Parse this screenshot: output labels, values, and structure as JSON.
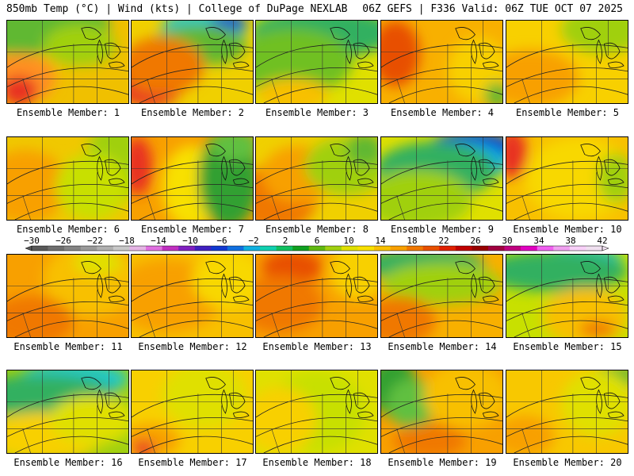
{
  "header": {
    "left": "850mb Temp (°C) | Wind (kts) | College of DuPage NEXLAB",
    "right": "06Z GEFS | F336 Valid: 06Z TUE OCT 07 2025"
  },
  "colorbar": {
    "ticks": [
      "-30",
      "-26",
      "-22",
      "-18",
      "-14",
      "-10",
      "-6",
      "-2",
      "2",
      "6",
      "10",
      "14",
      "18",
      "22",
      "26",
      "30",
      "34",
      "38",
      "42"
    ],
    "colors": [
      "#585858",
      "#6e6e6e",
      "#848484",
      "#9a9a9a",
      "#b0b0b0",
      "#c8c8c8",
      "#e4b4e4",
      "#e070e0",
      "#c030c0",
      "#8020c0",
      "#4020c0",
      "#1038d0",
      "#1070e0",
      "#10b0e0",
      "#10d0b0",
      "#10c060",
      "#10a020",
      "#60b810",
      "#a0d010",
      "#e0e000",
      "#f8e000",
      "#f8c000",
      "#f8a000",
      "#f07800",
      "#e85000",
      "#e02000",
      "#c00000",
      "#980000",
      "#a00040",
      "#c00080",
      "#e000c0",
      "#f060f0",
      "#f0a0f0",
      "#f8d0f8",
      "#f0e0f0"
    ]
  },
  "panels": [
    {
      "label": "Ensemble Member: 1",
      "base": "#f0c000",
      "blobs": [
        [
          "#60b830",
          0.15,
          0.05,
          0.7,
          0.35
        ],
        [
          "#ff9020",
          0.1,
          0.7,
          0.3,
          0.3
        ],
        [
          "#e83020",
          0.1,
          0.85,
          0.15,
          0.18
        ],
        [
          "#a0d010",
          0.6,
          0.3,
          0.3,
          0.25
        ]
      ]
    },
    {
      "label": "Ensemble Member: 2",
      "base": "#f0d000",
      "blobs": [
        [
          "#20c8c8",
          0.6,
          0.08,
          0.35,
          0.2
        ],
        [
          "#1060d0",
          0.8,
          0.03,
          0.15,
          0.12
        ],
        [
          "#60b830",
          0.55,
          0.3,
          0.4,
          0.25
        ],
        [
          "#e83020",
          0.15,
          0.7,
          0.3,
          0.35
        ],
        [
          "#f07800",
          0.25,
          0.55,
          0.35,
          0.35
        ]
      ]
    },
    {
      "label": "Ensemble Member: 3",
      "base": "#e0e000",
      "blobs": [
        [
          "#30b060",
          0.55,
          0.15,
          0.6,
          0.3
        ],
        [
          "#70c020",
          0.3,
          0.5,
          0.5,
          0.4
        ],
        [
          "#f8c000",
          0.3,
          0.9,
          0.3,
          0.2
        ]
      ]
    },
    {
      "label": "Ensemble Member: 4",
      "base": "#f8b000",
      "blobs": [
        [
          "#e85000",
          0.12,
          0.4,
          0.2,
          0.4
        ],
        [
          "#f8d000",
          0.8,
          0.6,
          0.25,
          0.4
        ],
        [
          "#60b830",
          0.95,
          0.9,
          0.1,
          0.15
        ]
      ]
    },
    {
      "label": "Ensemble Member: 5",
      "base": "#f8d000",
      "blobs": [
        [
          "#a0d010",
          0.8,
          0.1,
          0.35,
          0.3
        ],
        [
          "#f8a000",
          0.2,
          0.7,
          0.4,
          0.35
        ]
      ]
    },
    {
      "label": "Ensemble Member: 6",
      "base": "#f0c800",
      "blobs": [
        [
          "#f8a000",
          0.15,
          0.6,
          0.35,
          0.45
        ],
        [
          "#a0d010",
          0.9,
          0.3,
          0.25,
          0.5
        ],
        [
          "#c8e000",
          0.7,
          0.6,
          0.3,
          0.4
        ]
      ]
    },
    {
      "label": "Ensemble Member: 7",
      "base": "#f8a000",
      "blobs": [
        [
          "#e83020",
          0.05,
          0.35,
          0.12,
          0.35
        ],
        [
          "#f8e000",
          0.5,
          0.6,
          0.25,
          0.5
        ],
        [
          "#30a030",
          0.8,
          0.5,
          0.25,
          0.6
        ],
        [
          "#60c040",
          0.85,
          0.1,
          0.2,
          0.2
        ]
      ]
    },
    {
      "label": "Ensemble Member: 8",
      "base": "#f0d000",
      "blobs": [
        [
          "#f07800",
          0.15,
          0.75,
          0.35,
          0.4
        ],
        [
          "#f8a000",
          0.35,
          0.45,
          0.3,
          0.35
        ],
        [
          "#a0d010",
          0.75,
          0.35,
          0.35,
          0.35
        ],
        [
          "#60b830",
          0.9,
          0.15,
          0.15,
          0.2
        ]
      ]
    },
    {
      "label": "Ensemble Member: 9",
      "base": "#e0e000",
      "blobs": [
        [
          "#1038d0",
          0.75,
          0.12,
          0.35,
          0.2
        ],
        [
          "#10b0e0",
          0.65,
          0.3,
          0.4,
          0.25
        ],
        [
          "#30b060",
          0.45,
          0.4,
          0.5,
          0.35
        ],
        [
          "#a0d010",
          0.3,
          0.75,
          0.45,
          0.35
        ]
      ]
    },
    {
      "label": "Ensemble Member: 10",
      "base": "#f8c000",
      "blobs": [
        [
          "#e83020",
          0.05,
          0.2,
          0.12,
          0.3
        ],
        [
          "#f8d800",
          0.6,
          0.5,
          0.45,
          0.5
        ],
        [
          "#a0d010",
          0.9,
          0.5,
          0.15,
          0.3
        ]
      ]
    },
    {
      "label": "Ensemble Member: 11",
      "base": "#f8a000",
      "blobs": [
        [
          "#f8c000",
          0.7,
          0.3,
          0.4,
          0.45
        ],
        [
          "#e0e000",
          0.75,
          0.1,
          0.2,
          0.15
        ],
        [
          "#f07800",
          0.2,
          0.8,
          0.35,
          0.3
        ]
      ]
    },
    {
      "label": "Ensemble Member: 12",
      "base": "#f8c000",
      "blobs": [
        [
          "#f8a000",
          0.3,
          0.5,
          0.45,
          0.45
        ],
        [
          "#f8d800",
          0.8,
          0.3,
          0.3,
          0.35
        ]
      ]
    },
    {
      "label": "Ensemble Member: 13",
      "base": "#f8a000",
      "blobs": [
        [
          "#e85000",
          0.3,
          0.15,
          0.25,
          0.2
        ],
        [
          "#f07800",
          0.2,
          0.6,
          0.35,
          0.35
        ],
        [
          "#f8d000",
          0.85,
          0.2,
          0.25,
          0.35
        ]
      ]
    },
    {
      "label": "Ensemble Member: 14",
      "base": "#f8b000",
      "blobs": [
        [
          "#30b060",
          0.35,
          0.12,
          0.5,
          0.2
        ],
        [
          "#a0d010",
          0.5,
          0.35,
          0.5,
          0.25
        ],
        [
          "#f07800",
          0.15,
          0.8,
          0.3,
          0.3
        ]
      ]
    },
    {
      "label": "Ensemble Member: 15",
      "base": "#c8e000",
      "blobs": [
        [
          "#20c8c8",
          0.6,
          0.05,
          0.35,
          0.15
        ],
        [
          "#30b060",
          0.4,
          0.2,
          0.6,
          0.25
        ],
        [
          "#f8c000",
          0.65,
          0.75,
          0.35,
          0.35
        ],
        [
          "#f07800",
          0.75,
          0.9,
          0.15,
          0.1
        ]
      ]
    },
    {
      "label": "Ensemble Member: 16",
      "base": "#a0d010",
      "blobs": [
        [
          "#20c8c8",
          0.55,
          0.1,
          0.45,
          0.2
        ],
        [
          "#30b060",
          0.3,
          0.3,
          0.6,
          0.25
        ],
        [
          "#f8d000",
          0.3,
          0.8,
          0.5,
          0.3
        ],
        [
          "#e0e000",
          0.7,
          0.6,
          0.35,
          0.3
        ]
      ]
    },
    {
      "label": "Ensemble Member: 17",
      "base": "#f8d000",
      "blobs": [
        [
          "#e0e000",
          0.6,
          0.3,
          0.35,
          0.4
        ],
        [
          "#f8a000",
          0.15,
          0.85,
          0.25,
          0.2
        ],
        [
          "#e83020",
          0.1,
          0.95,
          0.1,
          0.1
        ]
      ]
    },
    {
      "label": "Ensemble Member: 18",
      "base": "#e0e000",
      "blobs": [
        [
          "#c8e000",
          0.5,
          0.5,
          0.4,
          0.5
        ],
        [
          "#f8d000",
          0.2,
          0.6,
          0.3,
          0.4
        ]
      ]
    },
    {
      "label": "Ensemble Member: 19",
      "base": "#f8a000",
      "blobs": [
        [
          "#30a030",
          0.1,
          0.2,
          0.2,
          0.35
        ],
        [
          "#60c040",
          0.25,
          0.4,
          0.2,
          0.3
        ],
        [
          "#f8c000",
          0.7,
          0.3,
          0.35,
          0.4
        ],
        [
          "#f07800",
          0.4,
          0.85,
          0.3,
          0.2
        ]
      ]
    },
    {
      "label": "Ensemble Member: 20",
      "base": "#f8c800",
      "blobs": [
        [
          "#60b830",
          0.9,
          0.08,
          0.2,
          0.15
        ],
        [
          "#e0e000",
          0.75,
          0.4,
          0.3,
          0.4
        ],
        [
          "#f8a000",
          0.15,
          0.8,
          0.25,
          0.25
        ]
      ]
    }
  ]
}
